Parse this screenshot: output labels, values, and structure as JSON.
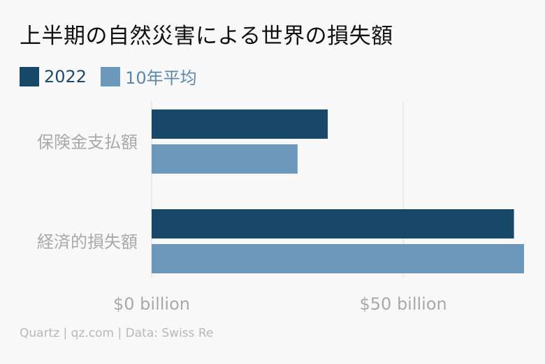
{
  "title": "上半期の自然災害による世界の損失額",
  "source": "Quartz | qz.com | Data: Swiss Re",
  "colors": {
    "series_2022": "#174867",
    "series_avg": "#6b98bb",
    "grid": "#dddddd",
    "text_muted": "#a9a9a9"
  },
  "chart_data": {
    "type": "bar",
    "orientation": "horizontal",
    "categories": [
      "保険金支払額",
      "経済的損失額"
    ],
    "series": [
      {
        "name": "2022",
        "values": [
          35,
          72
        ]
      },
      {
        "name": "10年平均",
        "values": [
          29,
          74
        ]
      }
    ],
    "xlim": [
      0,
      74
    ],
    "x_ticks": [
      {
        "value": 0,
        "label": "$0 billion"
      },
      {
        "value": 50,
        "label": "$50 billion"
      }
    ],
    "legend_position": "top-left",
    "grid": true
  }
}
